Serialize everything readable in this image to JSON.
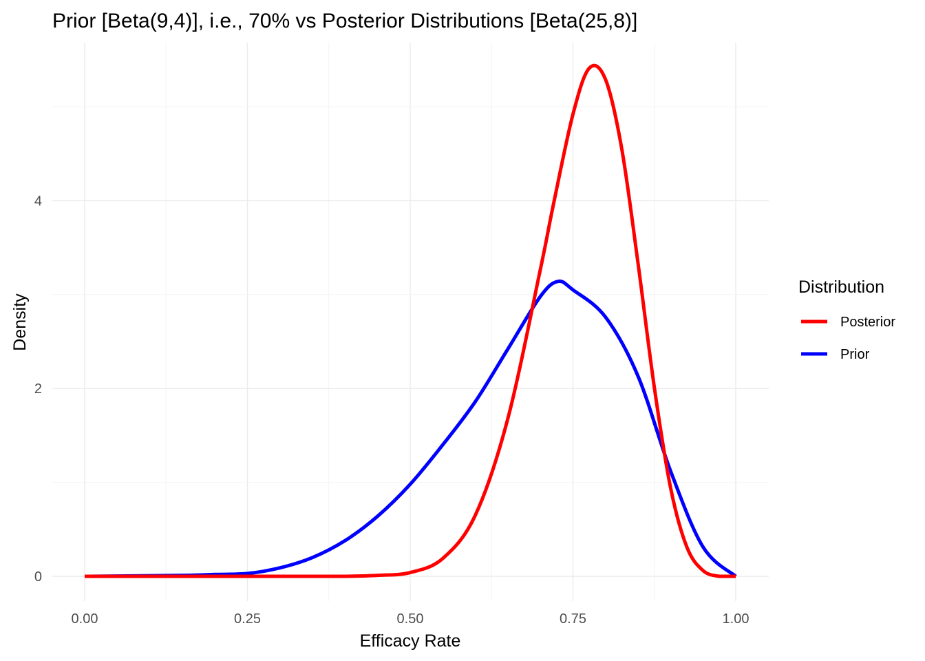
{
  "chart_data": {
    "type": "line",
    "title": "Prior [Beta(9,4)], i.e., 70% vs Posterior Distributions [Beta(25,8)]",
    "xlabel": "Efficacy Rate",
    "ylabel": "Density",
    "xlim": [
      0,
      1
    ],
    "ylim": [
      -0.2,
      5.75
    ],
    "x_ticks": [
      0,
      0.25,
      0.5,
      0.75,
      1
    ],
    "x_tick_labels": [
      "0.00",
      "0.25",
      "0.50",
      "0.75",
      "1.00"
    ],
    "y_ticks": [
      0,
      2,
      4
    ],
    "y_tick_labels": [
      "0",
      "2",
      "4"
    ],
    "grid": true,
    "legend": {
      "title": "Distribution",
      "position": "right"
    },
    "series": [
      {
        "name": "Posterior",
        "color": "#ff0000",
        "distribution": "Beta(25,8)",
        "x": [
          0.3,
          0.35,
          0.4,
          0.45,
          0.5,
          0.55,
          0.6,
          0.65,
          0.7,
          0.72,
          0.75,
          0.775,
          0.8,
          0.825,
          0.85,
          0.875,
          0.9,
          0.925,
          0.95,
          0.975,
          1.0
        ],
        "y": [
          0.0,
          0.0,
          0.0,
          0.01,
          0.04,
          0.19,
          0.65,
          1.68,
          3.27,
          3.96,
          4.92,
          5.41,
          5.29,
          4.55,
          3.33,
          2.01,
          0.94,
          0.31,
          0.06,
          0.0,
          0.0
        ]
      },
      {
        "name": "Prior",
        "color": "#0000ff",
        "distribution": "Beta(9,4)",
        "x": [
          0.0,
          0.15,
          0.2,
          0.25,
          0.3,
          0.35,
          0.4,
          0.45,
          0.5,
          0.55,
          0.6,
          0.65,
          0.7,
          0.727,
          0.75,
          0.8,
          0.85,
          0.9,
          0.95,
          1.0
        ],
        "y": [
          0.0,
          0.01,
          0.02,
          0.03,
          0.09,
          0.2,
          0.38,
          0.64,
          0.98,
          1.4,
          1.86,
          2.42,
          2.98,
          3.14,
          3.05,
          2.76,
          2.13,
          1.12,
          0.31,
          0.0
        ]
      }
    ]
  }
}
